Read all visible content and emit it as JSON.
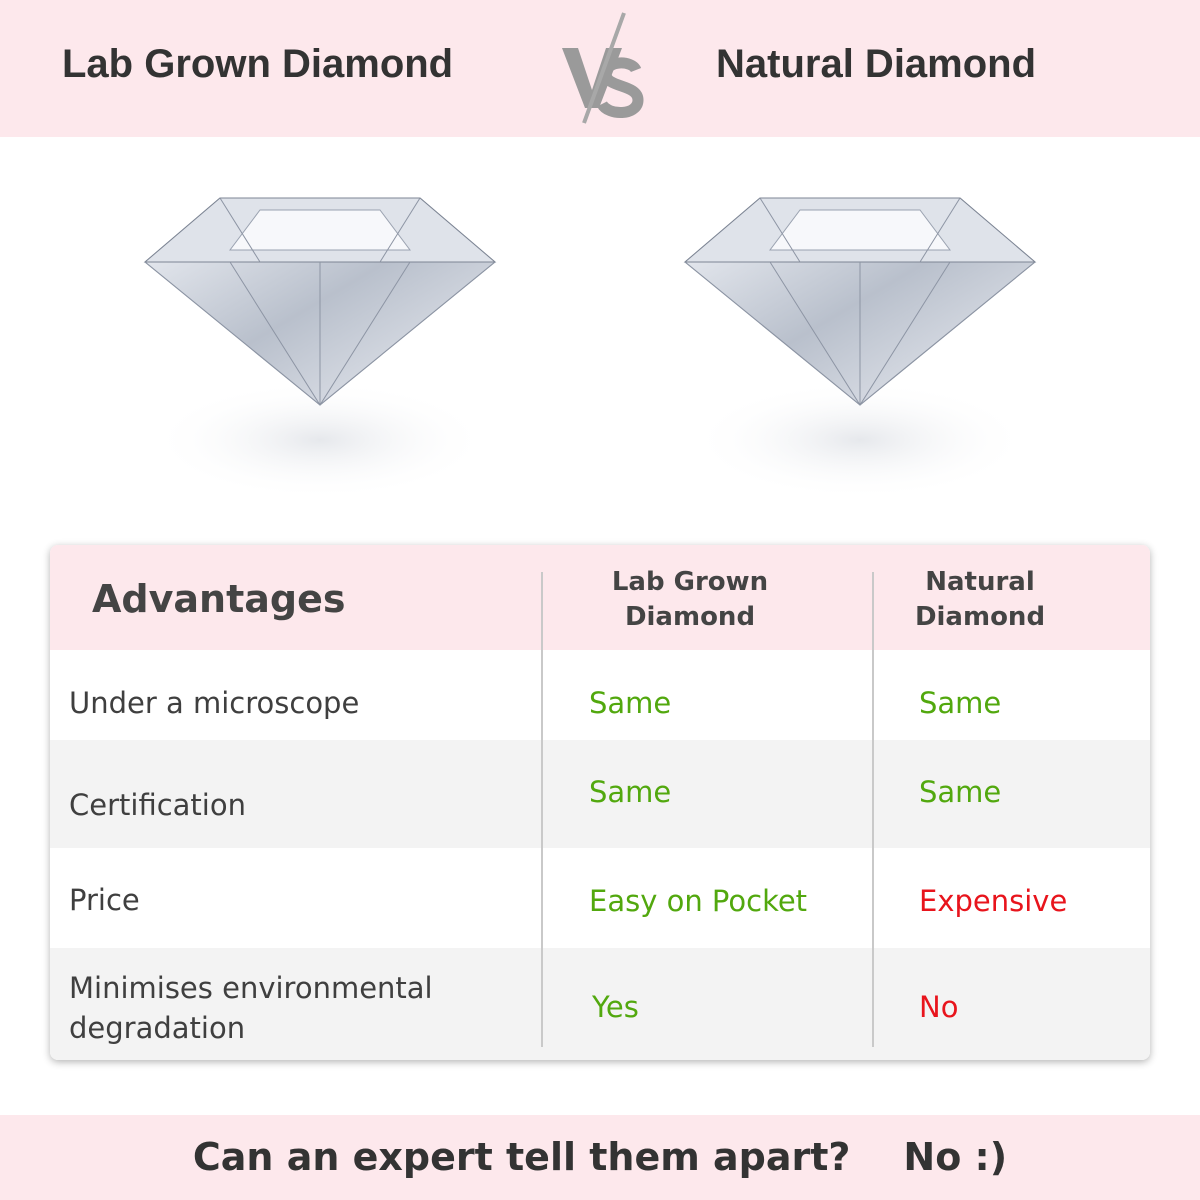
{
  "header": {
    "left_title": "Lab Grown Diamond",
    "vs_logo": "VS",
    "right_title": "Natural Diamond"
  },
  "table": {
    "headers": [
      "Advantages",
      "Lab Grown Diamond",
      "Natural Diamond"
    ],
    "rows": [
      {
        "label": "Under a microscope",
        "lab": "Same",
        "natural": "Same"
      },
      {
        "label": "Certification",
        "lab": "Same",
        "natural": "Same"
      },
      {
        "label": "Price",
        "lab": "Easy on Pocket",
        "natural": "Expensive"
      },
      {
        "label": "Minimises environmental degradation",
        "lab": "Yes",
        "natural": "No"
      }
    ]
  },
  "footer": {
    "question": "Can an expert tell them apart?",
    "answer": "No :)"
  },
  "colors": {
    "band": "#fde8ec",
    "positive": "#52a80e",
    "negative": "#e8141c",
    "row_alt": "#f3f3f3"
  }
}
